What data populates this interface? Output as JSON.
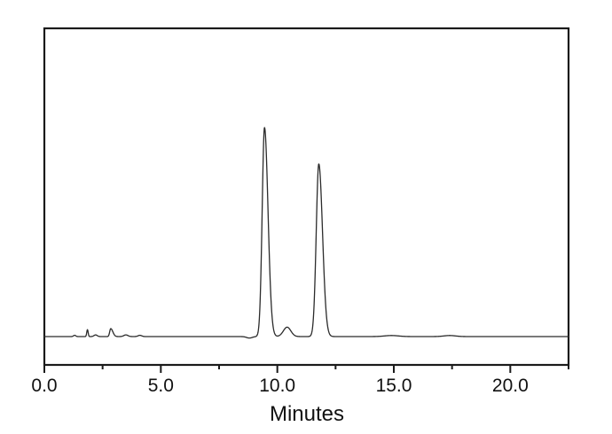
{
  "figure": {
    "background_color": "#ffffff",
    "frame_color": "#1a1a1a",
    "trace_color": "#2b2b2b",
    "text_color": "#111111"
  },
  "chart_data": {
    "type": "line",
    "title": "",
    "subtitle": "",
    "xlabel": "Minutes",
    "ylabel": "",
    "xlim": [
      0,
      22.5
    ],
    "ylim_relative_intensity": [
      -0.14,
      1.48
    ],
    "grid": false,
    "legend": null,
    "y_axis_ticks_visible": false,
    "x_major_ticks": [
      {
        "value": 0.0,
        "label": "0.0"
      },
      {
        "value": 5.0,
        "label": "5.0"
      },
      {
        "value": 10.0,
        "label": "10.0"
      },
      {
        "value": 15.0,
        "label": "15.0"
      },
      {
        "value": 20.0,
        "label": "20.0"
      }
    ],
    "x_minor_ticks": [
      2.5,
      7.5,
      12.5,
      17.5,
      22.5
    ],
    "baseline_relative_intensity": 0,
    "peaks": [
      {
        "name": "baseline-blip-1",
        "rt_min": 1.3,
        "height": 0.006,
        "sigma_min": 0.05
      },
      {
        "name": "impurity-peak-1",
        "rt_min": 1.85,
        "height": 0.033,
        "sigma_min": 0.03
      },
      {
        "name": "baseline-blip-2",
        "rt_min": 2.2,
        "height": 0.008,
        "sigma_min": 0.07
      },
      {
        "name": "impurity-peak-2",
        "rt_min": 2.85,
        "height": 0.038,
        "sigma_min": 0.045,
        "sigma_right_min": 0.09
      },
      {
        "name": "baseline-blip-3",
        "rt_min": 3.5,
        "height": 0.008,
        "sigma_min": 0.09
      },
      {
        "name": "baseline-blip-4",
        "rt_min": 4.1,
        "height": 0.006,
        "sigma_min": 0.08
      },
      {
        "name": "pre-peak-dip",
        "rt_min": 8.8,
        "height": -0.007,
        "sigma_min": 0.12
      },
      {
        "name": "main-peak-1",
        "rt_min": 9.45,
        "height": 1.0,
        "sigma_min": 0.1,
        "sigma_right_min": 0.15
      },
      {
        "name": "between-peaks-bump",
        "rt_min": 10.42,
        "height": 0.045,
        "sigma_min": 0.16
      },
      {
        "name": "main-peak-2",
        "rt_min": 11.78,
        "height": 0.826,
        "sigma_min": 0.11,
        "sigma_right_min": 0.16
      },
      {
        "name": "baseline-blip-5",
        "rt_min": 14.9,
        "height": 0.005,
        "sigma_min": 0.3
      },
      {
        "name": "baseline-blip-6",
        "rt_min": 17.4,
        "height": 0.005,
        "sigma_min": 0.25
      }
    ]
  }
}
